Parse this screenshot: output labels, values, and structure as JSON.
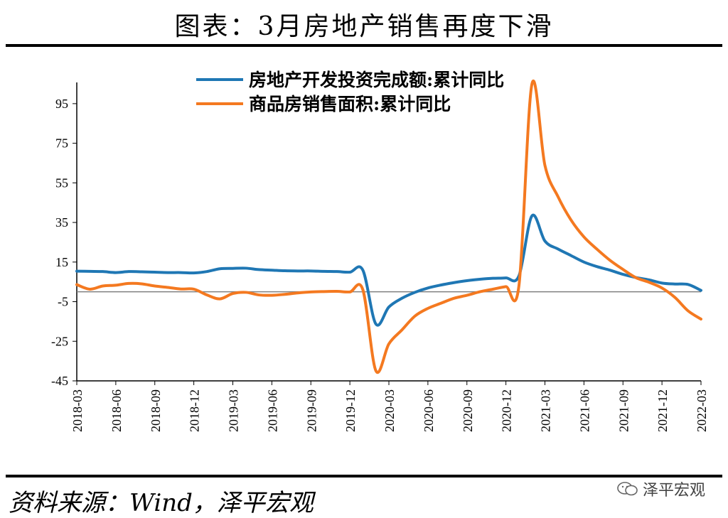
{
  "header": {
    "title": "图表：3月房地产销售再度下滑"
  },
  "footer": {
    "source": "资料来源：Wind，泽平宏观",
    "watermark": "泽平宏观"
  },
  "colors": {
    "investment": "#1f77b4",
    "sales": "#f47920",
    "axis": "#000000",
    "zero_line": "#808080"
  },
  "chart_data": {
    "type": "line",
    "title": "",
    "xlabel": "",
    "ylabel": "",
    "ylim": [
      -45,
      105
    ],
    "y_ticks": [
      95,
      75,
      55,
      35,
      15,
      -5,
      -25,
      -45
    ],
    "x_tick_labels": [
      "2018-03",
      "2018-06",
      "2018-09",
      "2018-12",
      "2019-03",
      "2019-06",
      "2019-09",
      "2019-12",
      "2020-03",
      "2020-06",
      "2020-09",
      "2020-12",
      "2021-03",
      "2021-06",
      "2021-09",
      "2021-12",
      "2022-03"
    ],
    "legend_position": "top",
    "grid": false,
    "series": [
      {
        "name": "房地产开发投资完成额:累计同比",
        "color": "#1f77b4",
        "points": [
          [
            "2018-03",
            10.4
          ],
          [
            "2018-04",
            10.3
          ],
          [
            "2018-05",
            10.2
          ],
          [
            "2018-06",
            9.7
          ],
          [
            "2018-07",
            10.2
          ],
          [
            "2018-08",
            10.1
          ],
          [
            "2018-09",
            9.9
          ],
          [
            "2018-10",
            9.7
          ],
          [
            "2018-11",
            9.7
          ],
          [
            "2018-12",
            9.5
          ],
          [
            "2019-01",
            10.2
          ],
          [
            "2019-02",
            11.6
          ],
          [
            "2019-03",
            11.8
          ],
          [
            "2019-04",
            11.9
          ],
          [
            "2019-05",
            11.2
          ],
          [
            "2019-06",
            10.9
          ],
          [
            "2019-07",
            10.6
          ],
          [
            "2019-08",
            10.5
          ],
          [
            "2019-09",
            10.5
          ],
          [
            "2019-10",
            10.3
          ],
          [
            "2019-11",
            10.2
          ],
          [
            "2019-12",
            9.9
          ],
          [
            "2020-01",
            10.9
          ],
          [
            "2020-02",
            -16.3
          ],
          [
            "2020-03",
            -7.7
          ],
          [
            "2020-04",
            -3.3
          ],
          [
            "2020-05",
            -0.3
          ],
          [
            "2020-06",
            1.9
          ],
          [
            "2020-07",
            3.4
          ],
          [
            "2020-08",
            4.6
          ],
          [
            "2020-09",
            5.6
          ],
          [
            "2020-10",
            6.3
          ],
          [
            "2020-11",
            6.8
          ],
          [
            "2020-12",
            7.0
          ],
          [
            "2021-01",
            8.0
          ],
          [
            "2021-02",
            38.3
          ],
          [
            "2021-03",
            25.6
          ],
          [
            "2021-04",
            21.6
          ],
          [
            "2021-05",
            18.3
          ],
          [
            "2021-06",
            15.0
          ],
          [
            "2021-07",
            12.7
          ],
          [
            "2021-08",
            10.9
          ],
          [
            "2021-09",
            8.8
          ],
          [
            "2021-10",
            7.2
          ],
          [
            "2021-11",
            6.0
          ],
          [
            "2021-12",
            4.4
          ],
          [
            "2022-01",
            3.9
          ],
          [
            "2022-02",
            3.7
          ],
          [
            "2022-03",
            0.7
          ]
        ]
      },
      {
        "name": "商品房销售面积:累计同比",
        "color": "#f47920",
        "points": [
          [
            "2018-03",
            3.6
          ],
          [
            "2018-04",
            1.3
          ],
          [
            "2018-05",
            2.9
          ],
          [
            "2018-06",
            3.3
          ],
          [
            "2018-07",
            4.2
          ],
          [
            "2018-08",
            4.0
          ],
          [
            "2018-09",
            2.9
          ],
          [
            "2018-10",
            2.2
          ],
          [
            "2018-11",
            1.4
          ],
          [
            "2018-12",
            1.3
          ],
          [
            "2019-01",
            -1.6
          ],
          [
            "2019-02",
            -3.6
          ],
          [
            "2019-03",
            -0.9
          ],
          [
            "2019-04",
            -0.3
          ],
          [
            "2019-05",
            -1.6
          ],
          [
            "2019-06",
            -1.8
          ],
          [
            "2019-07",
            -1.3
          ],
          [
            "2019-08",
            -0.6
          ],
          [
            "2019-09",
            -0.1
          ],
          [
            "2019-10",
            0.1
          ],
          [
            "2019-11",
            0.2
          ],
          [
            "2019-12",
            -0.1
          ],
          [
            "2020-01",
            1.0
          ],
          [
            "2020-02",
            -39.9
          ],
          [
            "2020-03",
            -26.3
          ],
          [
            "2020-04",
            -19.3
          ],
          [
            "2020-05",
            -12.3
          ],
          [
            "2020-06",
            -8.4
          ],
          [
            "2020-07",
            -5.8
          ],
          [
            "2020-08",
            -3.3
          ],
          [
            "2020-09",
            -1.8
          ],
          [
            "2020-10",
            0.0
          ],
          [
            "2020-11",
            1.3
          ],
          [
            "2020-12",
            2.6
          ],
          [
            "2021-01",
            3.0
          ],
          [
            "2021-02",
            104.9
          ],
          [
            "2021-03",
            63.8
          ],
          [
            "2021-04",
            48.1
          ],
          [
            "2021-05",
            36.3
          ],
          [
            "2021-06",
            27.7
          ],
          [
            "2021-07",
            21.5
          ],
          [
            "2021-08",
            15.9
          ],
          [
            "2021-09",
            11.3
          ],
          [
            "2021-10",
            7.1
          ],
          [
            "2021-11",
            4.8
          ],
          [
            "2021-12",
            1.9
          ],
          [
            "2022-01",
            -2.9
          ],
          [
            "2022-02",
            -9.6
          ],
          [
            "2022-03",
            -13.8
          ]
        ]
      }
    ]
  }
}
